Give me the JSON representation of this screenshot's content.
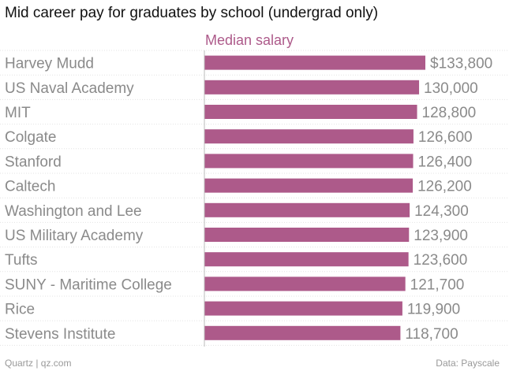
{
  "chart_data": {
    "type": "bar",
    "orientation": "horizontal",
    "title": "Mid career pay for graduates by school (undergrad only)",
    "series_name": "Median salary",
    "categories": [
      "Harvey Mudd",
      "US Naval Academy",
      "MIT",
      "Colgate",
      "Stanford",
      "Caltech",
      "Washington and Lee",
      "US Military Academy",
      "Tufts",
      "SUNY - Maritime College",
      "Rice",
      "Stevens Institute"
    ],
    "values": [
      133800,
      130000,
      128800,
      126600,
      126400,
      126200,
      124300,
      123900,
      123600,
      121700,
      119900,
      118700
    ],
    "value_labels": [
      "$133,800",
      "130,000",
      "128,800",
      "126,600",
      "126,400",
      "126,200",
      "124,300",
      "123,900",
      "123,600",
      "121,700",
      "119,900",
      "118,700"
    ],
    "xlim": [
      0,
      133800
    ],
    "grid": false,
    "bar_color": "#ad5a8a",
    "series_label_color": "#ad5a8a"
  },
  "footer": {
    "source_left": "Quartz | qz.com",
    "source_right": "Data: Payscale"
  }
}
